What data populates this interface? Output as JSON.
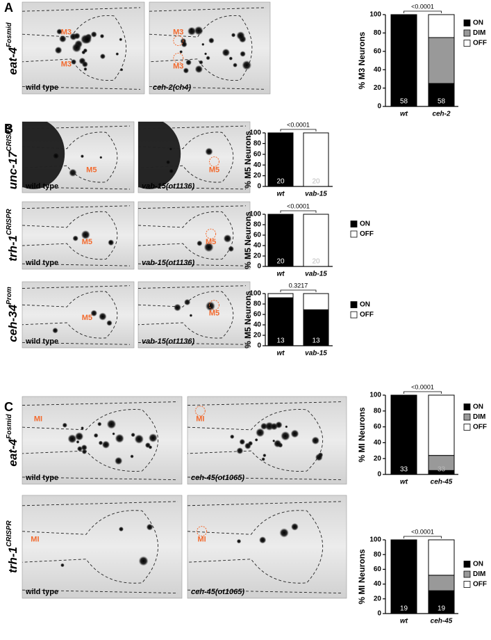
{
  "panels": [
    {
      "label": "A",
      "rows": [
        {
          "reporter": "eat-4",
          "superscript": "Fosmid",
          "images": [
            {
              "caption": "wild type",
              "markers": [
                "M3",
                "M3"
              ]
            },
            {
              "caption": "ceh-2(ch4)",
              "markers": [
                "M3",
                "M3"
              ]
            }
          ]
        }
      ]
    },
    {
      "label": "B",
      "rows": [
        {
          "reporter": "unc-17",
          "superscript": "CRISPR",
          "images": [
            {
              "caption": "wild type",
              "markers": [
                "M5"
              ]
            },
            {
              "caption": "vab-15(ot1136)",
              "markers": [
                "M5"
              ]
            }
          ]
        },
        {
          "reporter": "trh-1",
          "superscript": "CRISPR",
          "images": [
            {
              "caption": "wild type",
              "markers": [
                "M5"
              ]
            },
            {
              "caption": "vab-15(ot1136)",
              "markers": [
                "M5"
              ]
            }
          ]
        },
        {
          "reporter": "ceh-34",
          "superscript": "Prom",
          "images": [
            {
              "caption": "wild type",
              "markers": [
                "M5"
              ]
            },
            {
              "caption": "vab-15(ot1136)",
              "markers": [
                "M5"
              ]
            }
          ]
        }
      ]
    },
    {
      "label": "C",
      "rows": [
        {
          "reporter": "eat-4",
          "superscript": "Fosmid",
          "images": [
            {
              "caption": "wild type",
              "markers": [
                "MI"
              ]
            },
            {
              "caption": "ceh-45(ot1065)",
              "markers": [
                "MI"
              ]
            }
          ]
        },
        {
          "reporter": "trh-1",
          "superscript": "CRISPR",
          "images": [
            {
              "caption": "wild type",
              "markers": [
                "MI"
              ]
            },
            {
              "caption": "ceh-45(ot1065)",
              "markers": [
                "MI"
              ]
            }
          ]
        }
      ]
    }
  ],
  "chart_data": [
    {
      "type": "bar",
      "stacked": true,
      "y_label": "% M3 Neurons",
      "categories": [
        "wt",
        "ceh-2"
      ],
      "series": [
        {
          "name": "ON",
          "color": "#000000",
          "values": [
            100,
            25
          ]
        },
        {
          "name": "DIM",
          "color": "#999999",
          "values": [
            0,
            50
          ]
        },
        {
          "name": "OFF",
          "color": "#ffffff",
          "values": [
            0,
            25
          ]
        }
      ],
      "n_labels": [
        58,
        58
      ],
      "p_value": "<0.0001",
      "legend": true,
      "ylim": [
        0,
        100
      ],
      "yticks": [
        0,
        20,
        40,
        60,
        80,
        100
      ]
    },
    {
      "type": "bar",
      "stacked": true,
      "y_label": "% M5 Neurons",
      "categories": [
        "wt",
        "vab-15"
      ],
      "series": [
        {
          "color": "#000000",
          "values": [
            100,
            0
          ]
        },
        {
          "color": "#ffffff",
          "values": [
            0,
            100
          ]
        }
      ],
      "n_labels": [
        20,
        20
      ],
      "p_value": "<0.0001",
      "legend": false,
      "ylim": [
        0,
        100
      ],
      "yticks": [
        0,
        20,
        40,
        60,
        80,
        100
      ]
    },
    {
      "type": "bar",
      "stacked": true,
      "y_label": "% M5 Neurons",
      "categories": [
        "wt",
        "vab-15"
      ],
      "series": [
        {
          "name": "ON",
          "color": "#000000",
          "values": [
            100,
            0
          ]
        },
        {
          "name": "OFF",
          "color": "#ffffff",
          "values": [
            0,
            100
          ]
        }
      ],
      "n_labels": [
        20,
        20
      ],
      "p_value": "<0.0001",
      "legend": true,
      "ylim": [
        0,
        100
      ],
      "yticks": [
        0,
        20,
        40,
        60,
        80,
        100
      ]
    },
    {
      "type": "bar",
      "stacked": true,
      "y_label": "% M5 Neurons",
      "categories": [
        "wt",
        "vab-15"
      ],
      "series": [
        {
          "name": "ON",
          "color": "#000000",
          "values": [
            92,
            69
          ]
        },
        {
          "name": "OFF",
          "color": "#ffffff",
          "values": [
            8,
            31
          ]
        }
      ],
      "n_labels": [
        13,
        13
      ],
      "p_value": "0.3217",
      "legend": true,
      "ylim": [
        0,
        100
      ],
      "yticks": [
        0,
        20,
        40,
        60,
        80,
        100
      ]
    },
    {
      "type": "bar",
      "stacked": true,
      "y_label": "% MI Neurons",
      "categories": [
        "wt",
        "ceh-45"
      ],
      "series": [
        {
          "name": "ON",
          "color": "#000000",
          "values": [
            100,
            5
          ]
        },
        {
          "name": "DIM",
          "color": "#999999",
          "values": [
            0,
            19
          ]
        },
        {
          "name": "OFF",
          "color": "#ffffff",
          "values": [
            0,
            76
          ]
        }
      ],
      "n_labels": [
        33,
        33
      ],
      "p_value": "<0.0001",
      "legend": true,
      "ylim": [
        0,
        100
      ],
      "yticks": [
        0,
        20,
        40,
        60,
        80,
        100
      ]
    },
    {
      "type": "bar",
      "stacked": true,
      "y_label": "% MI Neurons",
      "categories": [
        "wt",
        "ceh-45"
      ],
      "series": [
        {
          "name": "ON",
          "color": "#000000",
          "values": [
            100,
            31
          ]
        },
        {
          "name": "DIM",
          "color": "#999999",
          "values": [
            0,
            21
          ]
        },
        {
          "name": "OFF",
          "color": "#ffffff",
          "values": [
            0,
            48
          ]
        }
      ],
      "n_labels": [
        19,
        19
      ],
      "p_value": "<0.0001",
      "legend": true,
      "ylim": [
        0,
        100
      ],
      "yticks": [
        0,
        20,
        40,
        60,
        80,
        100
      ]
    }
  ]
}
